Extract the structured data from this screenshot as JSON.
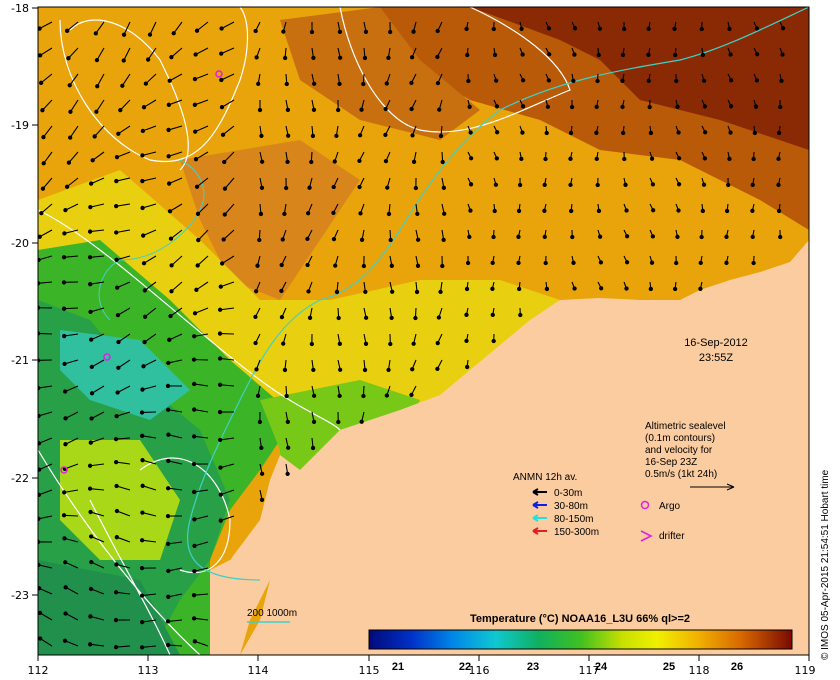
{
  "map": {
    "x_ticks": [
      "112",
      "113",
      "114",
      "115",
      "116",
      "117",
      "118",
      "119"
    ],
    "y_ticks": [
      "-18",
      "-19",
      "-20",
      "-21",
      "-22",
      "-23"
    ],
    "datetime_line1": "16-Sep-2012",
    "datetime_line2": "23:55Z",
    "altimetric": {
      "line1": "Altimetric sealevel",
      "line2": "(0.1m contours)",
      "line3": "and velocity for",
      "line4": "16-Sep 23Z",
      "line5": "0.5m/s (1kt 24h)"
    },
    "anmn_title": "ANMN 12h av.",
    "depth_legend": [
      {
        "label": "0-30m",
        "color": "#000000"
      },
      {
        "label": "30-80m",
        "color": "#1020e0"
      },
      {
        "label": "80-150m",
        "color": "#20e0e0"
      },
      {
        "label": "150-300m",
        "color": "#e02020"
      }
    ],
    "argo_label": "Argo",
    "drifter_label": "drifter",
    "isobath_label": "200  1000m",
    "colorbar": {
      "title": "Temperature (°C) NOAA16_L3U 66% ql>=2",
      "ticks": [
        "21",
        "22",
        "23",
        "24",
        "25",
        "26"
      ]
    },
    "credit": "© IMOS 05-Apr-2015 21:54:51 Hobart time",
    "colors": {
      "land": "#fbcc9f",
      "isobath_200": "#40d0c8",
      "sla_contour": "#ffffff",
      "argo": "#e020e0"
    }
  }
}
